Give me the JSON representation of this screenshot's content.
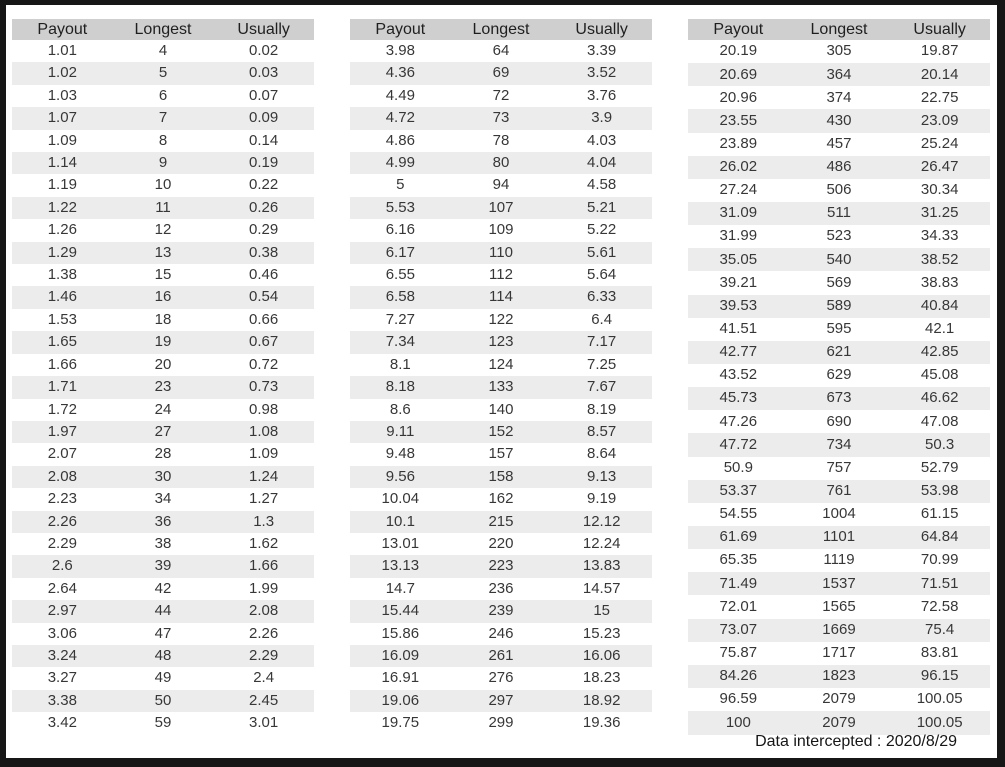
{
  "footer": {
    "text": "Data intercepted : 2020/8/29"
  },
  "colors": {
    "frame": "#161616",
    "header_bg": "#cfcfcf",
    "stripe_bg": "#ececec",
    "text": "#373737"
  },
  "chart_data": [
    {
      "type": "table",
      "columns": [
        "Payout",
        "Longest",
        "Usually"
      ],
      "rows": [
        [
          "1.01",
          "4",
          "0.02"
        ],
        [
          "1.02",
          "5",
          "0.03"
        ],
        [
          "1.03",
          "6",
          "0.07"
        ],
        [
          "1.07",
          "7",
          "0.09"
        ],
        [
          "1.09",
          "8",
          "0.14"
        ],
        [
          "1.14",
          "9",
          "0.19"
        ],
        [
          "1.19",
          "10",
          "0.22"
        ],
        [
          "1.22",
          "11",
          "0.26"
        ],
        [
          "1.26",
          "12",
          "0.29"
        ],
        [
          "1.29",
          "13",
          "0.38"
        ],
        [
          "1.38",
          "15",
          "0.46"
        ],
        [
          "1.46",
          "16",
          "0.54"
        ],
        [
          "1.53",
          "18",
          "0.66"
        ],
        [
          "1.65",
          "19",
          "0.67"
        ],
        [
          "1.66",
          "20",
          "0.72"
        ],
        [
          "1.71",
          "23",
          "0.73"
        ],
        [
          "1.72",
          "24",
          "0.98"
        ],
        [
          "1.97",
          "27",
          "1.08"
        ],
        [
          "2.07",
          "28",
          "1.09"
        ],
        [
          "2.08",
          "30",
          "1.24"
        ],
        [
          "2.23",
          "34",
          "1.27"
        ],
        [
          "2.26",
          "36",
          "1.3"
        ],
        [
          "2.29",
          "38",
          "1.62"
        ],
        [
          "2.6",
          "39",
          "1.66"
        ],
        [
          "2.64",
          "42",
          "1.99"
        ],
        [
          "2.97",
          "44",
          "2.08"
        ],
        [
          "3.06",
          "47",
          "2.26"
        ],
        [
          "3.24",
          "48",
          "2.29"
        ],
        [
          "3.27",
          "49",
          "2.4"
        ],
        [
          "3.38",
          "50",
          "2.45"
        ],
        [
          "3.42",
          "59",
          "3.01"
        ]
      ]
    },
    {
      "type": "table",
      "columns": [
        "Payout",
        "Longest",
        "Usually"
      ],
      "rows": [
        [
          "3.98",
          "64",
          "3.39"
        ],
        [
          "4.36",
          "69",
          "3.52"
        ],
        [
          "4.49",
          "72",
          "3.76"
        ],
        [
          "4.72",
          "73",
          "3.9"
        ],
        [
          "4.86",
          "78",
          "4.03"
        ],
        [
          "4.99",
          "80",
          "4.04"
        ],
        [
          "5",
          "94",
          "4.58"
        ],
        [
          "5.53",
          "107",
          "5.21"
        ],
        [
          "6.16",
          "109",
          "5.22"
        ],
        [
          "6.17",
          "110",
          "5.61"
        ],
        [
          "6.55",
          "112",
          "5.64"
        ],
        [
          "6.58",
          "114",
          "6.33"
        ],
        [
          "7.27",
          "122",
          "6.4"
        ],
        [
          "7.34",
          "123",
          "7.17"
        ],
        [
          "8.1",
          "124",
          "7.25"
        ],
        [
          "8.18",
          "133",
          "7.67"
        ],
        [
          "8.6",
          "140",
          "8.19"
        ],
        [
          "9.11",
          "152",
          "8.57"
        ],
        [
          "9.48",
          "157",
          "8.64"
        ],
        [
          "9.56",
          "158",
          "9.13"
        ],
        [
          "10.04",
          "162",
          "9.19"
        ],
        [
          "10.1",
          "215",
          "12.12"
        ],
        [
          "13.01",
          "220",
          "12.24"
        ],
        [
          "13.13",
          "223",
          "13.83"
        ],
        [
          "14.7",
          "236",
          "14.57"
        ],
        [
          "15.44",
          "239",
          "15"
        ],
        [
          "15.86",
          "246",
          "15.23"
        ],
        [
          "16.09",
          "261",
          "16.06"
        ],
        [
          "16.91",
          "276",
          "18.23"
        ],
        [
          "19.06",
          "297",
          "18.92"
        ],
        [
          "19.75",
          "299",
          "19.36"
        ]
      ]
    },
    {
      "type": "table",
      "columns": [
        "Payout",
        "Longest",
        "Usually"
      ],
      "rows": [
        [
          "20.19",
          "305",
          "19.87"
        ],
        [
          "20.69",
          "364",
          "20.14"
        ],
        [
          "20.96",
          "374",
          "22.75"
        ],
        [
          "23.55",
          "430",
          "23.09"
        ],
        [
          "23.89",
          "457",
          "25.24"
        ],
        [
          "26.02",
          "486",
          "26.47"
        ],
        [
          "27.24",
          "506",
          "30.34"
        ],
        [
          "31.09",
          "511",
          "31.25"
        ],
        [
          "31.99",
          "523",
          "34.33"
        ],
        [
          "35.05",
          "540",
          "38.52"
        ],
        [
          "39.21",
          "569",
          "38.83"
        ],
        [
          "39.53",
          "589",
          "40.84"
        ],
        [
          "41.51",
          "595",
          "42.1"
        ],
        [
          "42.77",
          "621",
          "42.85"
        ],
        [
          "43.52",
          "629",
          "45.08"
        ],
        [
          "45.73",
          "673",
          "46.62"
        ],
        [
          "47.26",
          "690",
          "47.08"
        ],
        [
          "47.72",
          "734",
          "50.3"
        ],
        [
          "50.9",
          "757",
          "52.79"
        ],
        [
          "53.37",
          "761",
          "53.98"
        ],
        [
          "54.55",
          "1004",
          "61.15"
        ],
        [
          "61.69",
          "1101",
          "64.84"
        ],
        [
          "65.35",
          "1119",
          "70.99"
        ],
        [
          "71.49",
          "1537",
          "71.51"
        ],
        [
          "72.01",
          "1565",
          "72.58"
        ],
        [
          "73.07",
          "1669",
          "75.4"
        ],
        [
          "75.87",
          "1717",
          "83.81"
        ],
        [
          "84.26",
          "1823",
          "96.15"
        ],
        [
          "96.59",
          "2079",
          "100.05"
        ],
        [
          "100",
          "2079",
          "100.05"
        ]
      ]
    }
  ]
}
